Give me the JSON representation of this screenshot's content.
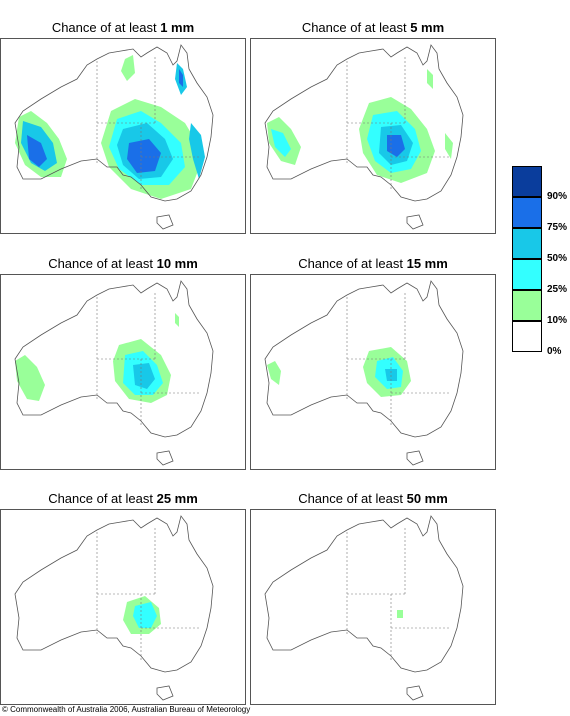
{
  "panels": [
    {
      "prefix": "Chance of at least ",
      "amount": "1 mm"
    },
    {
      "prefix": "Chance of at least ",
      "amount": "5 mm"
    },
    {
      "prefix": "Chance of at least ",
      "amount": "10 mm"
    },
    {
      "prefix": "Chance of at least ",
      "amount": "15 mm"
    },
    {
      "prefix": "Chance of at least ",
      "amount": "25 mm"
    },
    {
      "prefix": "Chance of at least ",
      "amount": "50 mm"
    }
  ],
  "legend": {
    "labels": [
      "90%",
      "75%",
      "50%",
      "25%",
      "10%",
      "0%"
    ],
    "colors": [
      "#0a3d9c",
      "#1a6fe8",
      "#18c8e8",
      "#33ffff",
      "#99ff99",
      "#ffffff"
    ]
  },
  "copyright": "© Commonwealth of Australia 2006, Australian Bureau of Meteorology"
}
